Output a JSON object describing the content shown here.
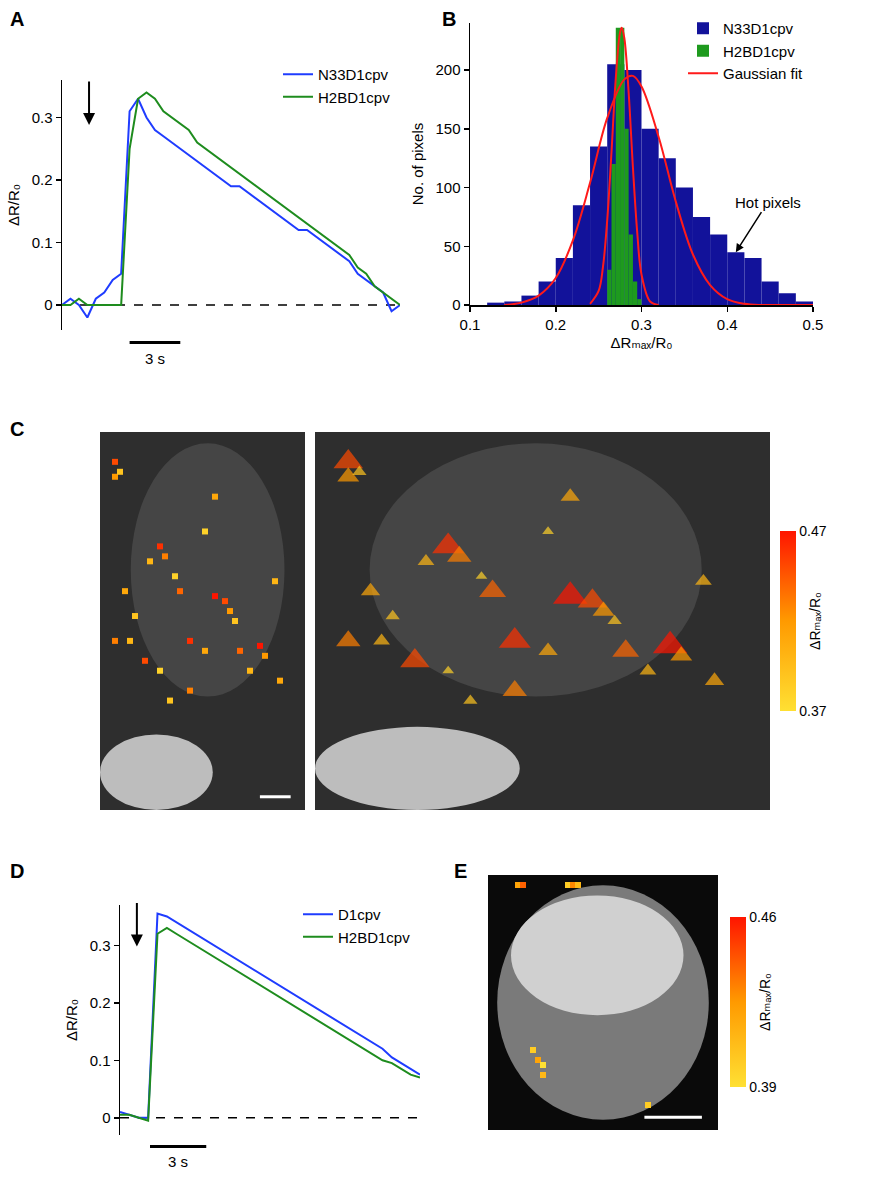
{
  "chart_data": [
    {
      "panel": "A",
      "type": "line",
      "ylabel": "ΔR/R₀",
      "x": [
        0,
        0.5,
        1,
        1.5,
        2,
        2.5,
        3,
        3.5,
        4,
        4.5,
        5,
        5.5,
        6,
        6.5,
        7,
        7.5,
        8,
        8.5,
        9,
        9.5,
        10,
        10.5,
        11,
        11.5,
        12,
        12.5,
        13,
        13.5,
        14,
        14.5,
        15,
        15.5,
        16,
        16.5,
        17,
        17.5,
        18,
        18.5,
        19,
        19.5,
        20
      ],
      "series": [
        {
          "name": "N33D1cpv",
          "color": "#1f3cff",
          "values": [
            0,
            0.01,
            0,
            -0.02,
            0.01,
            0.02,
            0.04,
            0.05,
            0.31,
            0.33,
            0.3,
            0.28,
            0.27,
            0.26,
            0.25,
            0.24,
            0.23,
            0.22,
            0.21,
            0.2,
            0.19,
            0.19,
            0.18,
            0.17,
            0.16,
            0.15,
            0.14,
            0.13,
            0.12,
            0.12,
            0.11,
            0.1,
            0.09,
            0.08,
            0.07,
            0.05,
            0.04,
            0.03,
            0.02,
            -0.01,
            0
          ]
        },
        {
          "name": "H2BD1cpv",
          "color": "#1e8c1e",
          "values": [
            0,
            0,
            0.01,
            0,
            0,
            0,
            0,
            0,
            0.25,
            0.33,
            0.34,
            0.33,
            0.31,
            0.3,
            0.29,
            0.28,
            0.26,
            0.25,
            0.24,
            0.23,
            0.22,
            0.21,
            0.2,
            0.19,
            0.18,
            0.17,
            0.16,
            0.15,
            0.14,
            0.13,
            0.12,
            0.11,
            0.1,
            0.09,
            0.08,
            0.06,
            0.05,
            0.03,
            0.02,
            0.01,
            0
          ]
        }
      ],
      "xlim": [
        0,
        20
      ],
      "ylim": [
        -0.04,
        0.36
      ],
      "yticks": [
        0,
        0.1,
        0.2,
        0.3
      ],
      "tick_labels": "y",
      "grid": false,
      "legend": "top right",
      "hline": 0,
      "arrow_x": 1.6,
      "scale_bar": {
        "length": 3,
        "label": "3 s"
      }
    },
    {
      "panel": "B",
      "type": "histogram",
      "xlabel": "ΔRₘₐₓ/R₀",
      "ylabel": "No. of pixels",
      "series": [
        {
          "name": "N33D1cpv",
          "type": "bar",
          "color": "#12129a",
          "bins": [
            0.12,
            0.14,
            0.16,
            0.18,
            0.2,
            0.22,
            0.24,
            0.26,
            0.28,
            0.3,
            0.32,
            0.34,
            0.36,
            0.38,
            0.4,
            0.42,
            0.44,
            0.46,
            0.48,
            0.5
          ],
          "values": [
            2,
            3,
            8,
            20,
            40,
            85,
            135,
            205,
            200,
            150,
            125,
            100,
            75,
            60,
            45,
            40,
            20,
            10,
            3
          ]
        },
        {
          "name": "H2BD1cpv",
          "type": "bar",
          "color": "#1e9a1e",
          "bins": [
            0.26,
            0.265,
            0.27,
            0.275,
            0.28,
            0.285,
            0.29,
            0.295,
            0.3
          ],
          "values": [
            30,
            120,
            236,
            236,
            150,
            60,
            20,
            5
          ]
        },
        {
          "name": "Gaussian fit",
          "type": "line",
          "color": "#ff1a1a",
          "x": [
            0.14,
            0.16,
            0.18,
            0.2,
            0.22,
            0.24,
            0.26,
            0.28,
            0.29,
            0.3,
            0.32,
            0.34,
            0.36,
            0.38,
            0.4,
            0.42,
            0.44,
            0.46,
            0.5
          ],
          "values": [
            0,
            2,
            8,
            23,
            55,
            104,
            159,
            192,
            195,
            186,
            143,
            88,
            43,
            17,
            5,
            1,
            0,
            0,
            0
          ]
        },
        {
          "name": "Gaussian fit",
          "type": "line",
          "color": "#ff1a1a",
          "x": [
            0.24,
            0.25,
            0.255,
            0.26,
            0.265,
            0.27,
            0.275,
            0.277,
            0.28,
            0.285,
            0.29,
            0.295,
            0.3,
            0.31,
            0.32
          ],
          "values": [
            1,
            12,
            32,
            72,
            130,
            193,
            232,
            236,
            227,
            181,
            117,
            62,
            26,
            3,
            0
          ]
        }
      ],
      "xlim": [
        0.1,
        0.5
      ],
      "xticks": [
        0.1,
        0.2,
        0.3,
        0.4,
        0.5
      ],
      "ylim": [
        0,
        240
      ],
      "yticks": [
        0,
        50,
        100,
        150,
        200
      ],
      "grid": false,
      "legend": "top right",
      "annotations": [
        {
          "text": "Hot pixels",
          "x": 0.41,
          "y": 45
        }
      ]
    },
    {
      "panel": "C",
      "type": "pixel_map",
      "marker": [
        "square",
        "triangle-up"
      ],
      "xlim": [
        0,
        41
      ],
      "ylim": [
        76,
        0
      ],
      "tick_labels": false,
      "pixels": {
        "x": [
          3,
          3,
          4,
          23,
          12,
          13,
          10,
          15,
          16,
          5,
          7,
          23,
          25,
          26,
          27,
          3,
          6,
          9,
          12,
          18,
          21,
          28,
          30,
          32,
          33,
          14,
          18,
          36,
          21,
          35
        ],
        "y": [
          6,
          9,
          8,
          13,
          23,
          25,
          26,
          29,
          32,
          32,
          37,
          33,
          34,
          36,
          38,
          42,
          42,
          46,
          48,
          42,
          44,
          44,
          48,
          43,
          45,
          54,
          52,
          50,
          20,
          30
        ],
        "values": [
          0.45,
          0.42,
          0.39,
          0.41,
          0.46,
          0.43,
          0.4,
          0.38,
          0.44,
          0.41,
          0.39,
          0.47,
          0.45,
          0.42,
          0.39,
          0.43,
          0.4,
          0.45,
          0.38,
          0.46,
          0.41,
          0.44,
          0.4,
          0.47,
          0.42,
          0.39,
          0.43,
          0.41,
          0.38,
          0.4
        ]
      },
      "colorbar": {
        "range": [
          0.37,
          0.47
        ],
        "ticks": [
          0.37,
          0.47
        ],
        "label": "ΔRₘₐₓ/R₀"
      }
    },
    {
      "panel": "D",
      "type": "line",
      "ylabel": "ΔR/R₀",
      "x": [
        0,
        0.5,
        1,
        1.5,
        2,
        2.5,
        3,
        3.5,
        4,
        4.5,
        5,
        5.5,
        6,
        6.5,
        7,
        7.5,
        8,
        8.5,
        9,
        9.5,
        10,
        10.5,
        11,
        11.5,
        12,
        12.5,
        13,
        13.5,
        14,
        14.5,
        15,
        15.5,
        16
      ],
      "series": [
        {
          "name": "D1cpv",
          "color": "#1f3cff",
          "values": [
            0.01,
            0.005,
            0,
            0,
            0.355,
            0.35,
            0.34,
            0.33,
            0.32,
            0.31,
            0.3,
            0.29,
            0.28,
            0.27,
            0.26,
            0.25,
            0.24,
            0.23,
            0.22,
            0.21,
            0.2,
            0.19,
            0.18,
            0.17,
            0.16,
            0.15,
            0.14,
            0.13,
            0.12,
            0.105,
            0.095,
            0.085,
            0.075
          ]
        },
        {
          "name": "H2BD1cpv",
          "color": "#1e8c1e",
          "values": [
            0.005,
            0.005,
            0,
            -0.005,
            0.32,
            0.33,
            0.32,
            0.31,
            0.3,
            0.29,
            0.28,
            0.27,
            0.26,
            0.25,
            0.24,
            0.23,
            0.22,
            0.21,
            0.2,
            0.19,
            0.18,
            0.17,
            0.16,
            0.15,
            0.14,
            0.13,
            0.12,
            0.11,
            0.1,
            0.095,
            0.085,
            0.075,
            0.07
          ]
        }
      ],
      "xlim": [
        0,
        16
      ],
      "ylim": [
        -0.03,
        0.37
      ],
      "yticks": [
        0,
        0.1,
        0.2,
        0.3
      ],
      "tick_labels": "y",
      "grid": false,
      "legend": "top right",
      "hline": 0,
      "arrow_x": 0.9,
      "scale_bar": {
        "length": 3,
        "label": "3 s"
      }
    },
    {
      "panel": "E",
      "type": "pixel_map",
      "marker": [
        "square"
      ],
      "xlim": [
        0,
        46
      ],
      "ylim": [
        51,
        0
      ],
      "tick_labels": false,
      "pixels": {
        "x": [
          6,
          7,
          16,
          17,
          18,
          9,
          10,
          11,
          11,
          32
        ],
        "y": [
          2,
          2,
          2,
          2,
          2,
          35,
          37,
          38,
          40,
          46
        ],
        "values": [
          0.42,
          0.44,
          0.4,
          0.43,
          0.41,
          0.4,
          0.42,
          0.39,
          0.41,
          0.4
        ]
      },
      "colorbar": {
        "range": [
          0.39,
          0.46
        ],
        "ticks": [
          0.39,
          0.46
        ],
        "label": "ΔRₘₐₓ/R₀"
      }
    }
  ]
}
